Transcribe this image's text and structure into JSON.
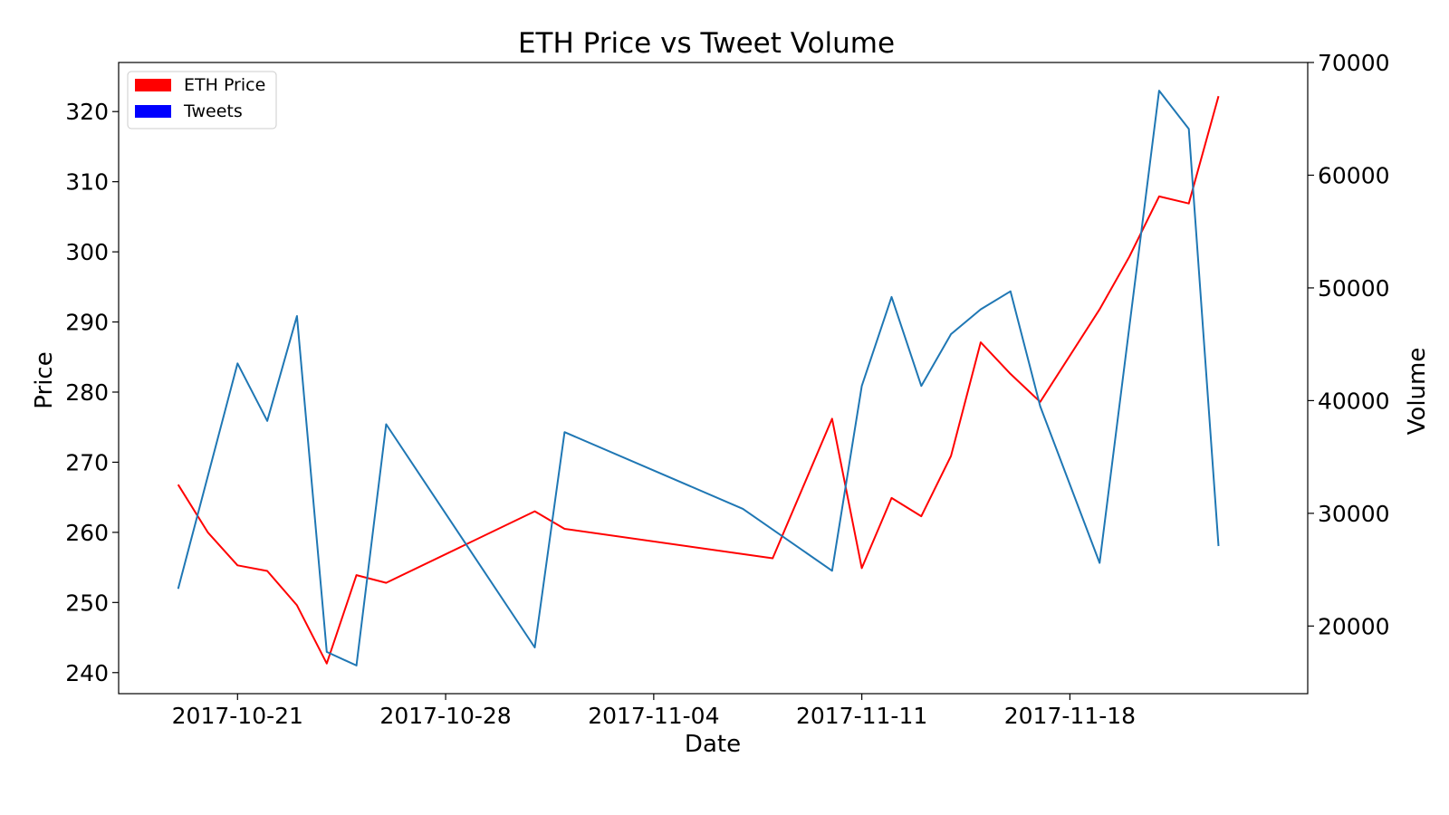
{
  "chart_data": {
    "type": "line",
    "title": "ETH Price vs Tweet Volume",
    "xlabel": "Date",
    "ylabel": "Price",
    "y2label": "Volume",
    "x_ticks": [
      "2017-10-21",
      "2017-10-28",
      "2017-11-04",
      "2017-11-11",
      "2017-11-18"
    ],
    "xlim": [
      "2017-10-17",
      "2017-11-26"
    ],
    "ylim": [
      237,
      327
    ],
    "y_ticks": [
      240,
      250,
      260,
      270,
      280,
      290,
      300,
      310,
      320
    ],
    "y2lim": [
      14000,
      70000
    ],
    "y2_ticks": [
      20000,
      30000,
      40000,
      50000,
      60000,
      70000
    ],
    "grid": false,
    "legend": {
      "placement": "top-left",
      "entries": [
        {
          "label": "ETH Price",
          "color": "#ff0000"
        },
        {
          "label": "Tweets",
          "color": "#0000ff"
        }
      ]
    },
    "series": [
      {
        "name": "ETH Price",
        "axis": "left",
        "color": "#ff0000",
        "points": [
          [
            "2017-10-19",
            266.8
          ],
          [
            "2017-10-20",
            260.0
          ],
          [
            "2017-10-21",
            255.3
          ],
          [
            "2017-10-22",
            254.5
          ],
          [
            "2017-10-23",
            249.6
          ],
          [
            "2017-10-24",
            241.3
          ],
          [
            "2017-10-25",
            253.9
          ],
          [
            "2017-10-26",
            252.8
          ],
          [
            "2017-10-31",
            263.0
          ],
          [
            "2017-11-01",
            260.5
          ],
          [
            "2017-11-08",
            256.3
          ],
          [
            "2017-11-10",
            276.2
          ],
          [
            "2017-11-11",
            254.9
          ],
          [
            "2017-11-12",
            264.9
          ],
          [
            "2017-11-13",
            262.3
          ],
          [
            "2017-11-14",
            270.9
          ],
          [
            "2017-11-15",
            287.1
          ],
          [
            "2017-11-16",
            282.6
          ],
          [
            "2017-11-17",
            278.6
          ],
          [
            "2017-11-19",
            291.8
          ],
          [
            "2017-11-20",
            299.3
          ],
          [
            "2017-11-21",
            307.9
          ],
          [
            "2017-11-22",
            306.9
          ],
          [
            "2017-11-23",
            322.2
          ]
        ]
      },
      {
        "name": "Tweets",
        "axis": "right",
        "color": "#1f77b4",
        "points": [
          [
            "2017-10-19",
            23300
          ],
          [
            "2017-10-21",
            43300
          ],
          [
            "2017-10-22",
            38200
          ],
          [
            "2017-10-23",
            47500
          ],
          [
            "2017-10-24",
            17700
          ],
          [
            "2017-10-25",
            16500
          ],
          [
            "2017-10-26",
            37900
          ],
          [
            "2017-10-31",
            18100
          ],
          [
            "2017-11-01",
            37200
          ],
          [
            "2017-11-07",
            30400
          ],
          [
            "2017-11-10",
            24900
          ],
          [
            "2017-11-11",
            41300
          ],
          [
            "2017-11-12",
            49200
          ],
          [
            "2017-11-13",
            41300
          ],
          [
            "2017-11-14",
            45900
          ],
          [
            "2017-11-15",
            48100
          ],
          [
            "2017-11-16",
            49700
          ],
          [
            "2017-11-17",
            39500
          ],
          [
            "2017-11-19",
            25600
          ],
          [
            "2017-11-21",
            67500
          ],
          [
            "2017-11-22",
            64100
          ],
          [
            "2017-11-23",
            27100
          ]
        ]
      }
    ]
  }
}
